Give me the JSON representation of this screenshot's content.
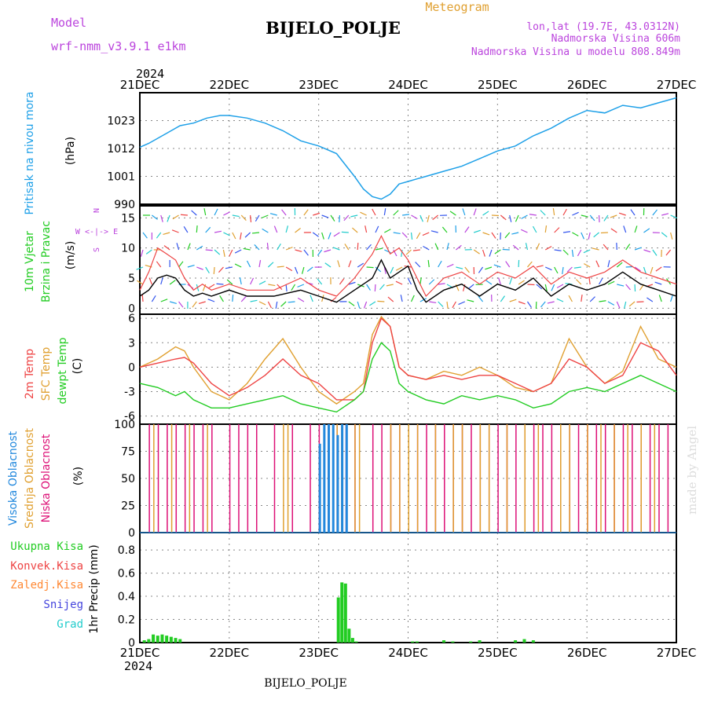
{
  "header": {
    "model_label": "Model",
    "model_value": "wrf-nmm_v3.9.1 e1km",
    "station": "BIJELO_POLJE",
    "meteogram_label": "Meteogram",
    "lonlat": "lon,lat (19.7E, 43.0312N)",
    "elevation": "Nadmorska Visina 606m",
    "model_elevation": "Nadmorska Visina u modelu 808.849m",
    "year": "2024",
    "watermark": "made by Angel",
    "footer_station": "BIJELO_POLJE"
  },
  "colors": {
    "pressure": "#1ea0e8",
    "wind_label": "#22cc22",
    "dir_label": "#bb44dd",
    "temp2m": "#ee4444",
    "sfc": "#e0a030",
    "dewpt": "#22cc22",
    "cloud_high": "#2288dd",
    "cloud_mid": "#e0a030",
    "cloud_low": "#dd1177",
    "precip_total": "#22cc22",
    "precip_conv": "#ee4444",
    "precip_frz": "#ff8833",
    "snow": "#4444dd",
    "graupel": "#22cccc"
  },
  "chart_data": [
    {
      "type": "line",
      "panel": "pressure",
      "ylabel_name": "Pritisak na nivou mora",
      "ylabel_unit": "(hPa)",
      "x_labels": [
        "21DEC",
        "22DEC",
        "23DEC",
        "24DEC",
        "25DEC",
        "26DEC",
        "27DEC"
      ],
      "yticks": [
        990,
        1001,
        1012,
        1023
      ],
      "ylim": [
        990,
        1034
      ],
      "series": [
        {
          "x": [
            0,
            0.1,
            0.3,
            0.45,
            0.6,
            0.75,
            0.9,
            1.0,
            1.2,
            1.4,
            1.6,
            1.8,
            2.0,
            2.2,
            2.4,
            2.5,
            2.6,
            2.7,
            2.8,
            2.9,
            3.0,
            3.1,
            3.2,
            3.4,
            3.6,
            3.8,
            4.0,
            4.2,
            4.4,
            4.6,
            4.8,
            5.0,
            5.2,
            5.4,
            5.6,
            5.8,
            6.0
          ],
          "y": [
            1012.5,
            1014,
            1018,
            1021,
            1022,
            1024,
            1025,
            1025,
            1024,
            1022,
            1019,
            1015,
            1013,
            1010,
            1001,
            996,
            993,
            992,
            994,
            998,
            999,
            1000,
            1001,
            1003,
            1005,
            1008,
            1011,
            1013,
            1017,
            1020,
            1024,
            1027,
            1026,
            1029,
            1028,
            1030,
            1032
          ]
        }
      ]
    },
    {
      "type": "line",
      "panel": "wind",
      "ylabel_name": "10m Vjetar",
      "ylabel_name2": "Brzina i Pravac",
      "ylabel_unit": "(m/s)",
      "dir_legend_n": "N",
      "dir_legend_we": "W <-|-> E",
      "dir_legend_s": "S",
      "yticks": [
        0,
        5,
        10,
        15
      ],
      "ylim": [
        -1,
        17
      ],
      "series": [
        {
          "name": "speed",
          "x": [
            0,
            0.1,
            0.2,
            0.3,
            0.4,
            0.5,
            0.6,
            0.7,
            0.8,
            1.0,
            1.2,
            1.5,
            1.8,
            2.0,
            2.2,
            2.4,
            2.5,
            2.6,
            2.7,
            2.8,
            2.9,
            3.0,
            3.1,
            3.2,
            3.4,
            3.6,
            3.8,
            4.0,
            4.2,
            4.4,
            4.6,
            4.8,
            5.0,
            5.2,
            5.4,
            5.6,
            5.8,
            6.0
          ],
          "y": [
            2,
            3,
            5,
            5.5,
            5,
            3,
            2,
            2.5,
            2,
            3,
            2,
            2,
            3,
            2,
            1,
            3,
            4,
            5,
            8,
            5,
            6,
            7,
            3,
            1,
            3,
            4,
            2,
            4,
            3,
            5,
            2,
            4,
            3,
            4,
            6,
            4,
            3,
            2
          ]
        },
        {
          "name": "gust",
          "x": [
            0,
            0.1,
            0.2,
            0.3,
            0.4,
            0.5,
            0.6,
            0.7,
            0.8,
            1.0,
            1.2,
            1.5,
            1.8,
            2.0,
            2.2,
            2.4,
            2.5,
            2.6,
            2.7,
            2.8,
            2.9,
            3.0,
            3.1,
            3.2,
            3.4,
            3.6,
            3.8,
            4.0,
            4.2,
            4.4,
            4.6,
            4.8,
            5.0,
            5.2,
            5.4,
            5.6,
            5.8,
            6.0
          ],
          "y": [
            3,
            6,
            10,
            9,
            8,
            5,
            3,
            4,
            3,
            4,
            3,
            3,
            5,
            3,
            2,
            5,
            7,
            9,
            12,
            9,
            10,
            8,
            5,
            2,
            5,
            6,
            4,
            6,
            5,
            7,
            4,
            6,
            5,
            6,
            8,
            6,
            5,
            4
          ]
        }
      ]
    },
    {
      "type": "line",
      "panel": "temperature",
      "ylabel_t2m": "2m Temp",
      "ylabel_sfc": "SFC Temp",
      "ylabel_dew": "dewpt Temp",
      "ylabel_unit": "(C)",
      "yticks": [
        -6,
        -3,
        0,
        3,
        6
      ],
      "ylim": [
        -7,
        6.5
      ],
      "series": [
        {
          "name": "2m Temp",
          "x": [
            0,
            0.2,
            0.4,
            0.5,
            0.6,
            0.8,
            1.0,
            1.2,
            1.4,
            1.6,
            1.8,
            2.0,
            2.2,
            2.4,
            2.5,
            2.6,
            2.7,
            2.8,
            2.9,
            3.0,
            3.2,
            3.4,
            3.6,
            3.8,
            4.0,
            4.2,
            4.4,
            4.6,
            4.8,
            5.0,
            5.2,
            5.4,
            5.6,
            5.8,
            6.0
          ],
          "y": [
            0,
            0.5,
            1,
            1.2,
            0.5,
            -2,
            -3.5,
            -2.5,
            -1,
            1,
            -1,
            -2,
            -4,
            -4,
            -3,
            3,
            6,
            5,
            0,
            -1,
            -1.5,
            -1,
            -1.5,
            -1,
            -1,
            -2,
            -3,
            -2,
            1,
            0,
            -2,
            -1,
            3,
            2,
            -1
          ]
        },
        {
          "name": "SFC Temp",
          "x": [
            0,
            0.2,
            0.4,
            0.5,
            0.6,
            0.8,
            1.0,
            1.2,
            1.4,
            1.6,
            1.8,
            2.0,
            2.2,
            2.4,
            2.5,
            2.6,
            2.7,
            2.8,
            2.9,
            3.0,
            3.2,
            3.4,
            3.6,
            3.8,
            4.0,
            4.2,
            4.4,
            4.6,
            4.8,
            5.0,
            5.2,
            5.4,
            5.6,
            5.8,
            6.0
          ],
          "y": [
            0,
            1,
            2.5,
            2,
            0,
            -3,
            -4,
            -2,
            1,
            3.5,
            0,
            -3,
            -4.5,
            -3,
            -2,
            4,
            6.2,
            5,
            0,
            -1,
            -1.5,
            -0.5,
            -1,
            0,
            -1,
            -2.5,
            -3,
            -2,
            3.5,
            0,
            -2,
            -0.5,
            5,
            1,
            0
          ]
        },
        {
          "name": "dewpt Temp",
          "x": [
            0,
            0.2,
            0.4,
            0.5,
            0.6,
            0.8,
            1.0,
            1.2,
            1.4,
            1.6,
            1.8,
            2.0,
            2.2,
            2.4,
            2.5,
            2.6,
            2.7,
            2.8,
            2.9,
            3.0,
            3.2,
            3.4,
            3.6,
            3.8,
            4.0,
            4.2,
            4.4,
            4.6,
            4.8,
            5.0,
            5.2,
            5.4,
            5.6,
            5.8,
            6.0
          ],
          "y": [
            -2,
            -2.5,
            -3.5,
            -3,
            -4,
            -5,
            -5,
            -4.5,
            -4,
            -3.5,
            -4.5,
            -5,
            -5.5,
            -4,
            -3,
            1,
            3,
            2,
            -2,
            -3,
            -4,
            -4.5,
            -3.5,
            -4,
            -3.5,
            -4,
            -5,
            -4.5,
            -3,
            -2.5,
            -3,
            -2,
            -1,
            -2,
            -3
          ]
        }
      ]
    },
    {
      "type": "bar",
      "panel": "clouds",
      "ylabel_high": "Visoka Oblacnost",
      "ylabel_mid": "Srednja Oblacnost",
      "ylabel_low": "Niska Oblacnost",
      "ylabel_unit": "(%)",
      "yticks": [
        0,
        25,
        50,
        75,
        100
      ],
      "ylim": [
        0,
        100
      ],
      "series": [
        {
          "name": "Niska",
          "x": [
            0.1,
            0.2,
            0.3,
            0.4,
            0.5,
            0.6,
            0.7,
            0.8,
            1.0,
            1.1,
            1.2,
            1.3,
            1.5,
            1.7,
            1.9,
            2.0,
            2.1,
            2.2,
            2.3,
            2.4,
            2.6,
            2.7,
            2.8,
            2.9,
            3.0,
            3.1,
            3.2,
            3.3,
            3.4,
            3.5,
            3.6,
            3.7,
            3.8,
            3.9,
            4.0,
            4.1,
            4.2,
            4.3,
            4.4,
            4.5,
            4.6,
            4.7,
            4.8,
            4.9,
            5.0,
            5.1,
            5.2,
            5.3,
            5.4,
            5.5,
            5.6,
            5.7,
            5.8,
            5.9
          ],
          "y": [
            100,
            100,
            100,
            100,
            100,
            100,
            100,
            100,
            100,
            100,
            100,
            100,
            100,
            100,
            100,
            100,
            100,
            100,
            100,
            100,
            100,
            100,
            100,
            100,
            100,
            100,
            100,
            100,
            100,
            100,
            100,
            100,
            100,
            100,
            100,
            100,
            100,
            100,
            100,
            100,
            100,
            100,
            100,
            100,
            100,
            100,
            100,
            100,
            100,
            100,
            100,
            100,
            100,
            100
          ]
        },
        {
          "name": "Srednja",
          "x": [
            0.15,
            0.35,
            0.55,
            0.75,
            1.6,
            1.65,
            2.2,
            2.25,
            2.4,
            2.45,
            2.8,
            2.9,
            3.0,
            3.1,
            3.3,
            3.5,
            3.6,
            3.8,
            3.9,
            4.1,
            4.3,
            4.45,
            4.7,
            4.8,
            5.0,
            5.15,
            5.3,
            5.45,
            5.6,
            5.75
          ],
          "y": [
            100,
            100,
            100,
            100,
            100,
            100,
            100,
            100,
            100,
            100,
            100,
            100,
            100,
            100,
            100,
            100,
            100,
            100,
            100,
            100,
            100,
            100,
            100,
            100,
            100,
            100,
            100,
            100,
            100,
            100
          ]
        },
        {
          "name": "Visoka",
          "x": [
            2.0,
            2.05,
            2.1,
            2.15,
            2.2,
            2.25,
            2.3
          ],
          "y": [
            82,
            100,
            100,
            100,
            90,
            100,
            100
          ]
        }
      ]
    },
    {
      "type": "bar",
      "panel": "precip",
      "ylabel_unit": "1hr Precip (mm)",
      "legend": [
        "Ukupna Kisa",
        "Konvek.Kisa",
        "Zaledj.Kisa",
        "Snijeg",
        "Grad"
      ],
      "yticks": [
        0,
        0.2,
        0.4,
        0.6,
        0.8
      ],
      "ylim": [
        0,
        0.95
      ],
      "series": [
        {
          "name": "Ukupna Kisa",
          "x": [
            0.05,
            0.1,
            0.15,
            0.2,
            0.25,
            0.3,
            0.35,
            0.4,
            0.45,
            2.22,
            2.26,
            2.3,
            2.34,
            2.38,
            2.42,
            3.05,
            3.1,
            3.4,
            3.5,
            3.7,
            3.8,
            4.2,
            4.3,
            4.4
          ],
          "y": [
            0.02,
            0.03,
            0.07,
            0.06,
            0.07,
            0.06,
            0.05,
            0.04,
            0.03,
            0.39,
            0.52,
            0.51,
            0.12,
            0.04,
            0.01,
            0.01,
            0.01,
            0.02,
            0.01,
            0.01,
            0.02,
            0.02,
            0.03,
            0.02
          ]
        }
      ]
    }
  ]
}
